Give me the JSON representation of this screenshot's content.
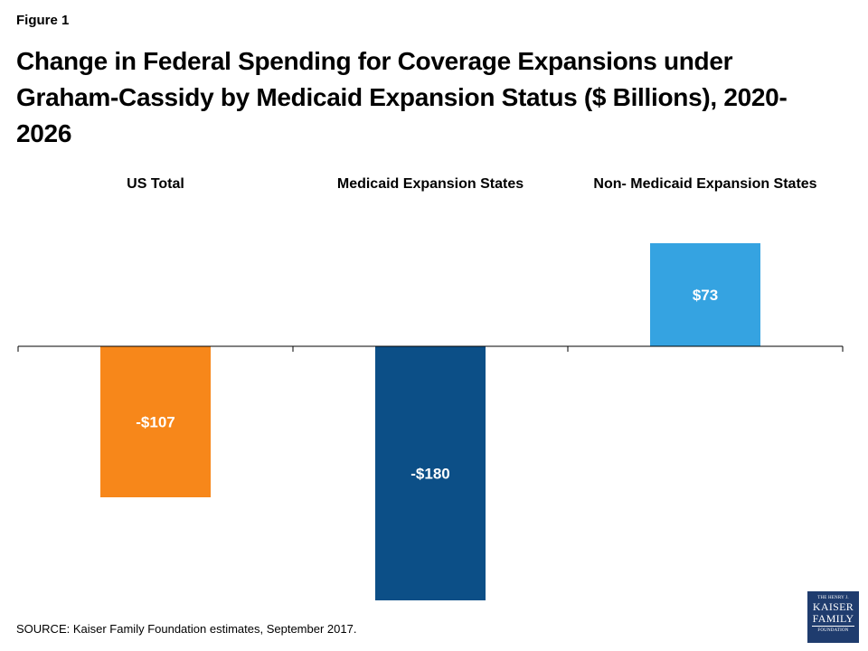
{
  "figure_label": "Figure 1",
  "source": "SOURCE: Kaiser Family Foundation estimates, September 2017.",
  "logo": {
    "line1": "THE HENRY J.",
    "line2": "KAISER",
    "line3": "FAMILY",
    "line4": "FOUNDATION"
  },
  "chart_data": {
    "type": "bar",
    "title": "Change in Federal Spending for Coverage Expansions under Graham-Cassidy by Medicaid Expansion Status ($ Billions), 2020-2026",
    "categories": [
      "US Total",
      "Medicaid Expansion States",
      "Non- Medicaid Expansion States"
    ],
    "values": [
      -107,
      -180,
      73
    ],
    "data_labels": [
      "-$107",
      "-$180",
      "$73"
    ],
    "colors": [
      "#f7871a",
      "#0c4f87",
      "#35a3e1"
    ],
    "category_label_position": "top",
    "ylim": [
      -180,
      73
    ],
    "grid": false,
    "legend": "none",
    "xlabel": "",
    "ylabel": ""
  }
}
